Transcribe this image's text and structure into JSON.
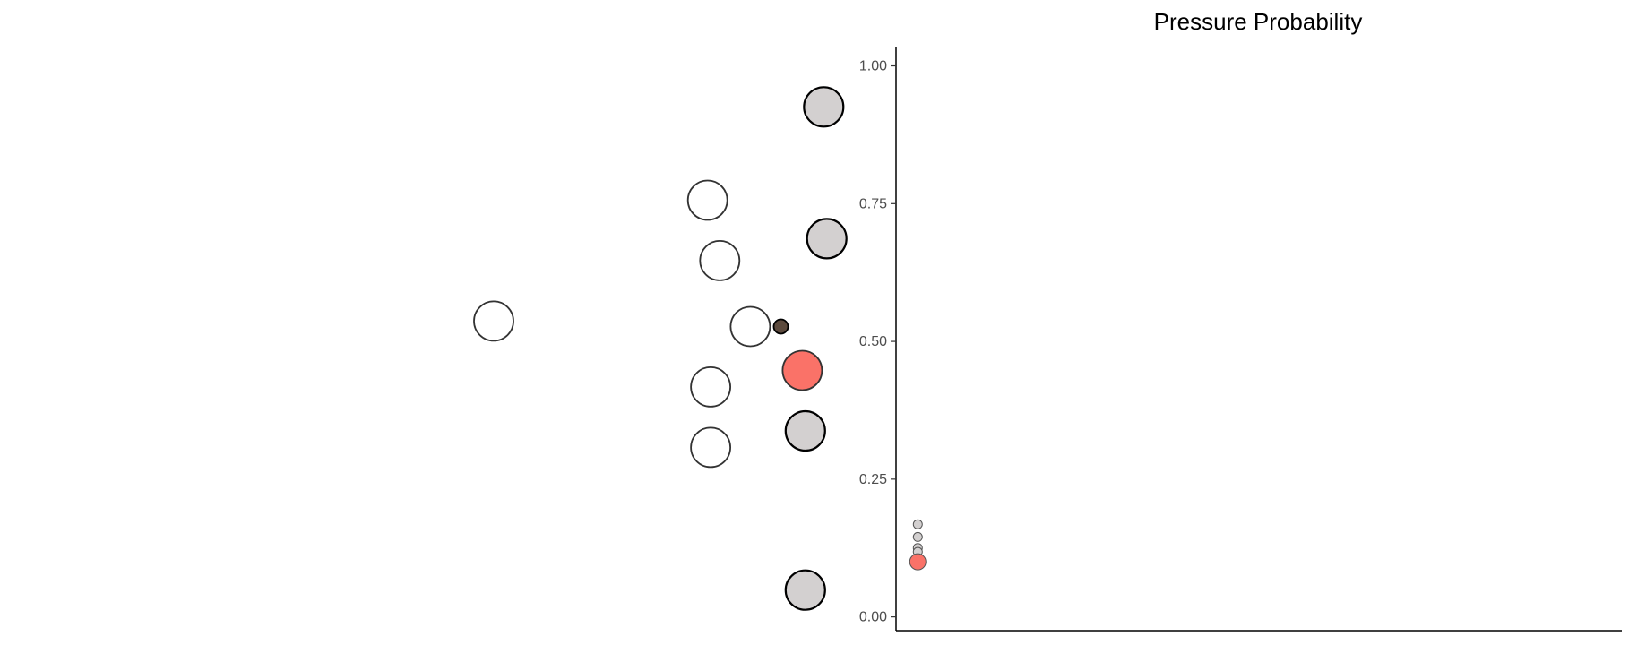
{
  "chart_data": [
    {
      "type": "scatter",
      "title": "",
      "xlabel": "",
      "ylabel": "",
      "axes": "none",
      "grid": false,
      "legend": "none",
      "points": [
        {
          "x": 0.0,
          "y": 0.51,
          "fill": "#ffffff",
          "size": "large"
        },
        {
          "x": 0.7,
          "y": 0.73,
          "fill": "#ffffff",
          "size": "large"
        },
        {
          "x": 0.74,
          "y": 0.62,
          "fill": "#ffffff",
          "size": "large"
        },
        {
          "x": 0.84,
          "y": 0.5,
          "fill": "#ffffff",
          "size": "large"
        },
        {
          "x": 0.71,
          "y": 0.39,
          "fill": "#ffffff",
          "size": "large"
        },
        {
          "x": 0.71,
          "y": 0.28,
          "fill": "#ffffff",
          "size": "large"
        },
        {
          "x": 1.08,
          "y": 0.9,
          "fill": "#d3d0d0",
          "size": "large"
        },
        {
          "x": 1.09,
          "y": 0.66,
          "fill": "#d3d0d0",
          "size": "large"
        },
        {
          "x": 1.02,
          "y": 0.31,
          "fill": "#d3d0d0",
          "size": "large"
        },
        {
          "x": 1.02,
          "y": 0.02,
          "fill": "#d3d0d0",
          "size": "large"
        },
        {
          "x": 1.01,
          "y": 0.42,
          "fill": "#fa7268",
          "size": "large"
        },
        {
          "x": 0.94,
          "y": 0.5,
          "fill": "#5c4a3d",
          "size": "small"
        }
      ]
    },
    {
      "type": "scatter",
      "title": "Pressure Probability",
      "xlabel": "",
      "ylabel": "",
      "ylim": [
        -0.025,
        1.035
      ],
      "yticks": [
        "0.00",
        "0.25",
        "0.50",
        "0.75",
        "1.00"
      ],
      "ytick_values": [
        0,
        0.25,
        0.5,
        0.75,
        1.0
      ],
      "grid": false,
      "legend": "none",
      "points": [
        {
          "x": 0.03,
          "y": 0.168,
          "fill": "#d3d0d0",
          "size": "small"
        },
        {
          "x": 0.03,
          "y": 0.145,
          "fill": "#d3d0d0",
          "size": "small"
        },
        {
          "x": 0.03,
          "y": 0.125,
          "fill": "#d3d0d0",
          "size": "small"
        },
        {
          "x": 0.03,
          "y": 0.118,
          "fill": "#d3d0d0",
          "size": "small"
        },
        {
          "x": 0.03,
          "y": 0.1,
          "fill": "#fa7268",
          "size": "medium"
        }
      ]
    }
  ],
  "colors": {
    "defender": "#ffffff",
    "attacker": "#d3d0d0",
    "highlight": "#fa7268",
    "ball": "#5c4a3d",
    "axis": "#000000"
  }
}
